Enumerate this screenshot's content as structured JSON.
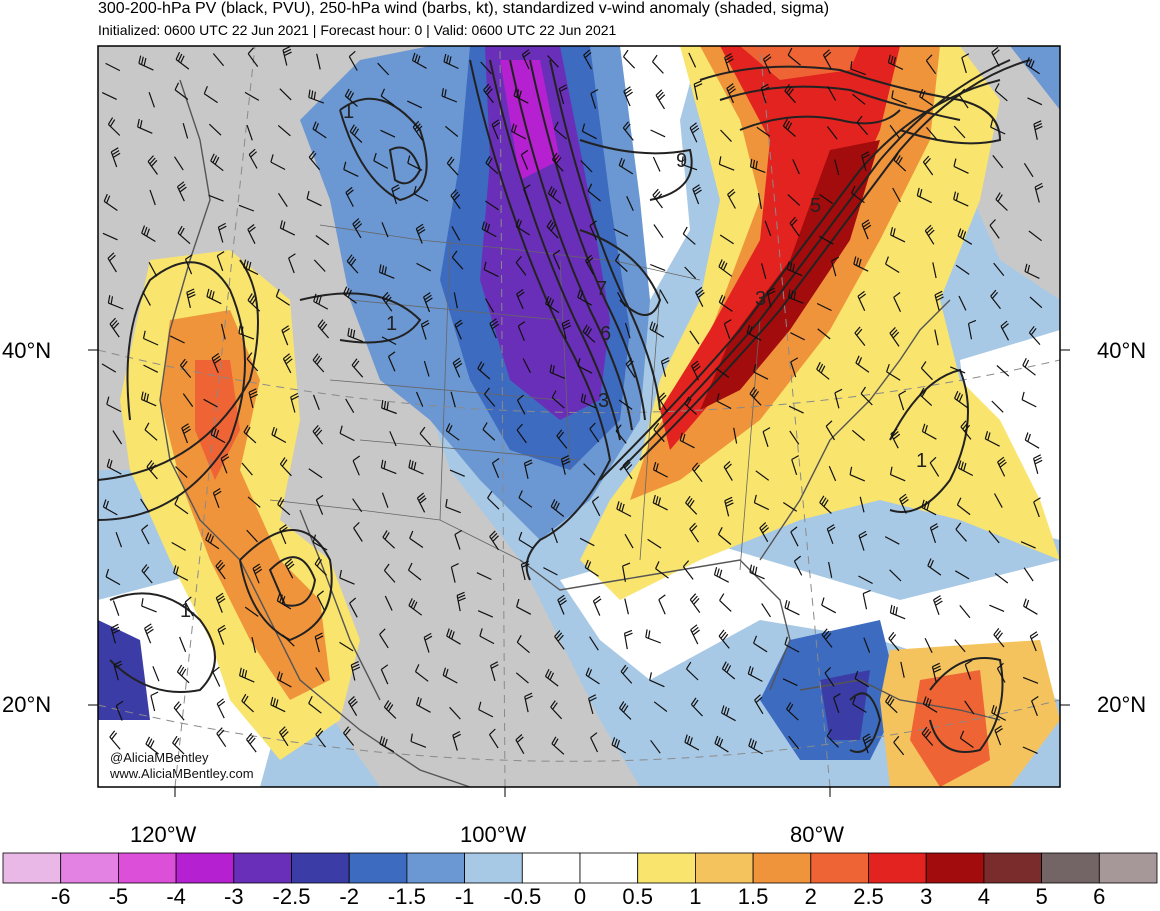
{
  "header": {
    "title": "300-200-hPa PV (black, PVU), 250-hPa wind (barbs, kt), standardized v-wind anomaly (shaded, sigma)",
    "subtitle": "Initialized: 0600 UTC 22 Jun 2021 | Forecast hour: 0 | Valid: 0600 UTC 22 Jun 2021"
  },
  "axes": {
    "lat_labels": [
      "40°N",
      "20°N"
    ],
    "lon_labels": [
      "120°W",
      "100°W",
      "80°W"
    ]
  },
  "contour_labels": [
    "1",
    "1",
    "1",
    "1",
    "9",
    "5",
    "7",
    "6",
    "3",
    "3",
    "1",
    "1",
    "1"
  ],
  "credit": {
    "handle": "@AliciaMBentley",
    "site": "www.AliciaMBentley.com"
  },
  "colorbar": {
    "colors": [
      "#e9b8e6",
      "#e382e3",
      "#dc4fd8",
      "#b520d0",
      "#6a2fb8",
      "#3b3ca6",
      "#3d6bc0",
      "#6b97d2",
      "#a8c9e6",
      "#ffffff",
      "#ffffff",
      "#f9e46d",
      "#f4c35e",
      "#f0943c",
      "#ee6434",
      "#e2231f",
      "#a30c0c",
      "#7a2b2b",
      "#736565",
      "#a69898"
    ],
    "labels": [
      "-6",
      "-5",
      "-4",
      "-3",
      "-2.5",
      "-2",
      "-1.5",
      "-1",
      "-0.5",
      "0",
      "0.5",
      "1",
      "1.5",
      "2",
      "2.5",
      "3",
      "4",
      "5",
      "6"
    ]
  },
  "legend_colors": {
    "land_neutral": "#c8c8c8",
    "coast": "#555555",
    "contour": "#222222"
  }
}
